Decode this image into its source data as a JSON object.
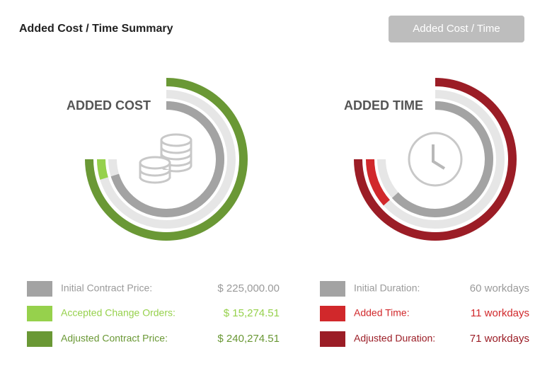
{
  "header": {
    "title": "Added Cost / Time Summary",
    "button": "Added Cost / Time"
  },
  "panels": [
    {
      "title": "ADDED COST",
      "items": [
        {
          "label": "Initial Contract Price:",
          "value": 225000,
          "value_label": "$ 225,000.00",
          "color": "#a3a3a3"
        },
        {
          "label": "Accepted Change Orders:",
          "value": 15274.51,
          "value_label": "$ 15,274.51",
          "color": "#96d14c"
        },
        {
          "label": "Adjusted Contract Price:",
          "value": 240274.51,
          "value_label": "$ 240,274.51",
          "color": "#6a9835"
        }
      ]
    },
    {
      "title": "ADDED TIME",
      "items": [
        {
          "label": "Initial Duration:",
          "value": 60,
          "value_label": "60 workdays",
          "color": "#a3a3a3"
        },
        {
          "label": "Added Time:",
          "value": 11,
          "value_label": "11 workdays",
          "color": "#d1282b"
        },
        {
          "label": "Adjusted Duration:",
          "value": 71,
          "value_label": "71 workdays",
          "color": "#9b1d26"
        }
      ]
    }
  ]
}
